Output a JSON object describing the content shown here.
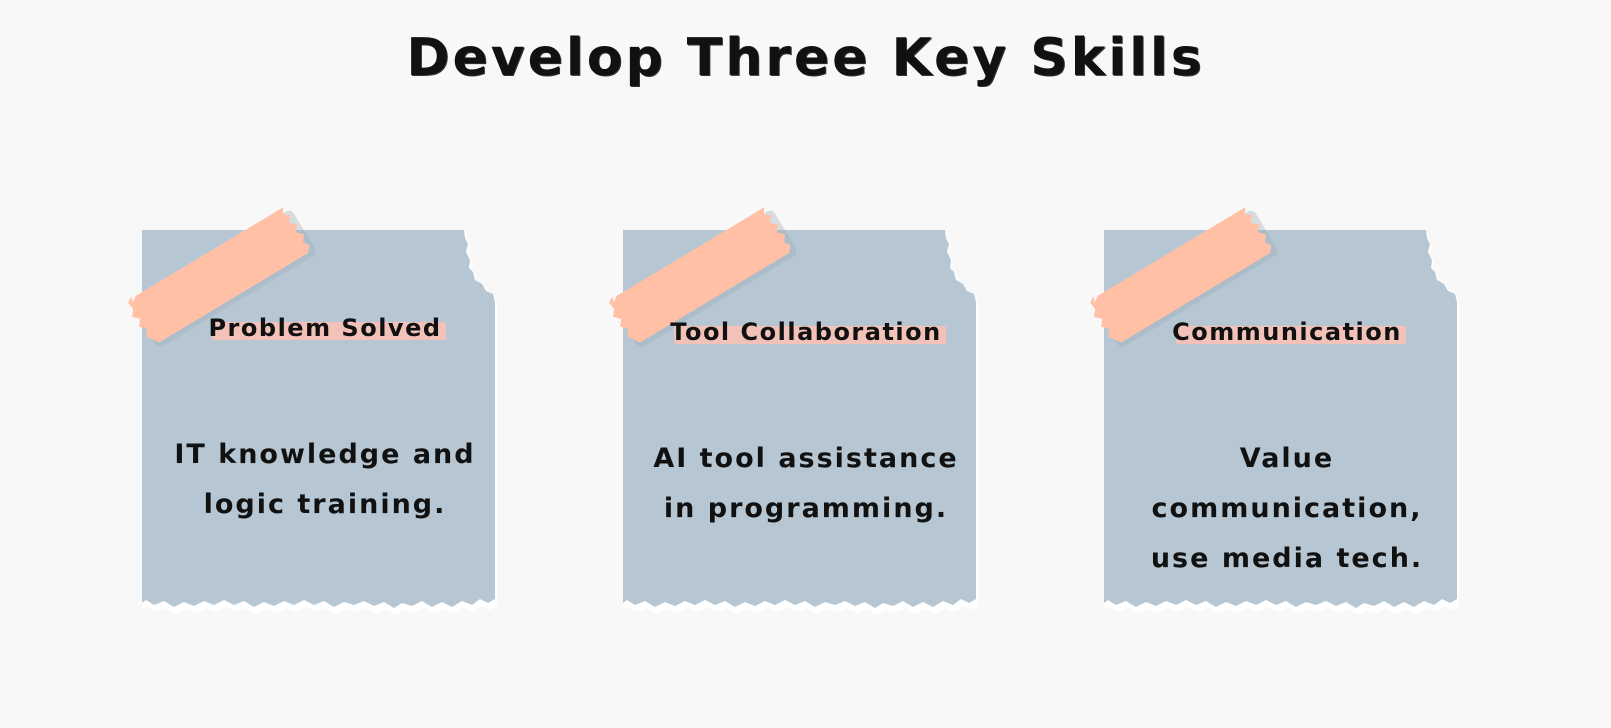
{
  "title": "Develop Three Key Skills",
  "colors": {
    "background": "#f8f8f8",
    "note_paper": "#b6c7d3",
    "tape": "#ffc0a6",
    "heading_highlight": "#f2c2b8",
    "text": "#111111"
  },
  "cards": [
    {
      "heading": "Problem Solved",
      "body_lines": [
        "IT knowledge and",
        "logic training."
      ]
    },
    {
      "heading": "Tool Collaboration",
      "body_lines": [
        "AI tool assistance",
        "in programming."
      ]
    },
    {
      "heading": "Communication",
      "body_lines": [
        "Value",
        "communication,",
        "use media tech."
      ]
    }
  ]
}
